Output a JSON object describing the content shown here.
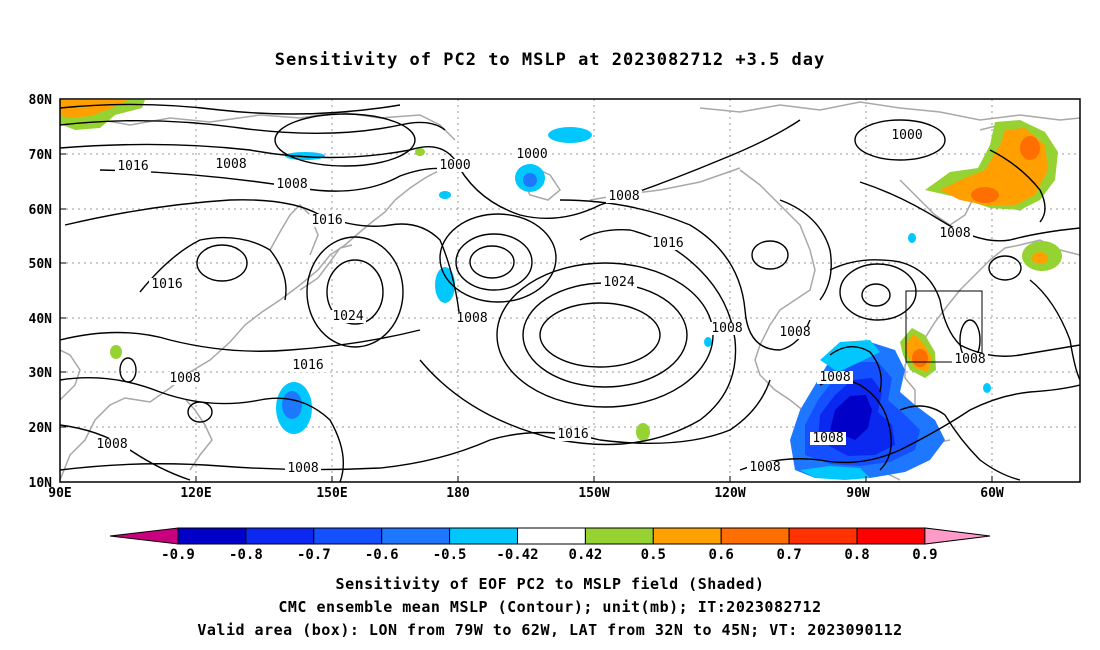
{
  "title": "Sensitivity of PC2 to MSLP at 2023082712 +3.5 day",
  "lat_labels": [
    "80N",
    "70N",
    "60N",
    "50N",
    "40N",
    "30N",
    "20N",
    "10N"
  ],
  "lon_labels": [
    "90E",
    "120E",
    "150E",
    "180",
    "150W",
    "120W",
    "90W",
    "60W"
  ],
  "contour_labels": [
    "1016",
    "1008",
    "1008",
    "1000",
    "1000",
    "1008",
    "1000",
    "1016",
    "1016",
    "1008",
    "1016",
    "1024",
    "1024",
    "1008",
    "1008",
    "1008",
    "1016",
    "1008",
    "1008",
    "1008",
    "1008",
    "1008",
    "1016",
    "1008",
    "1008",
    "1008"
  ],
  "colorbar": {
    "ticks": [
      "-0.9",
      "-0.8",
      "-0.7",
      "-0.6",
      "-0.5",
      "-0.42",
      "0.42",
      "0.5",
      "0.6",
      "0.7",
      "0.8",
      "0.9"
    ],
    "colors": [
      "#c8007d",
      "#0000c8",
      "#0a28f0",
      "#1450ff",
      "#1e78ff",
      "#00c8ff",
      "#ffffff",
      "#96d232",
      "#ffa000",
      "#ff6e00",
      "#ff3200",
      "#ff0000",
      "#ff9bc8"
    ]
  },
  "valid_box": {
    "lon_from": "79W",
    "lon_to": "62W",
    "lat_from": "32N",
    "lat_to": "45N"
  },
  "captions": {
    "line1": "Sensitivity of EOF PC2 to MSLP field (Shaded)",
    "line2": "CMC ensemble mean MSLP (Contour); unit(mb); IT:2023082712",
    "line3": "Valid area (box): LON from 79W to 62W, LAT from 32N to 45N; VT: 2023090112"
  }
}
